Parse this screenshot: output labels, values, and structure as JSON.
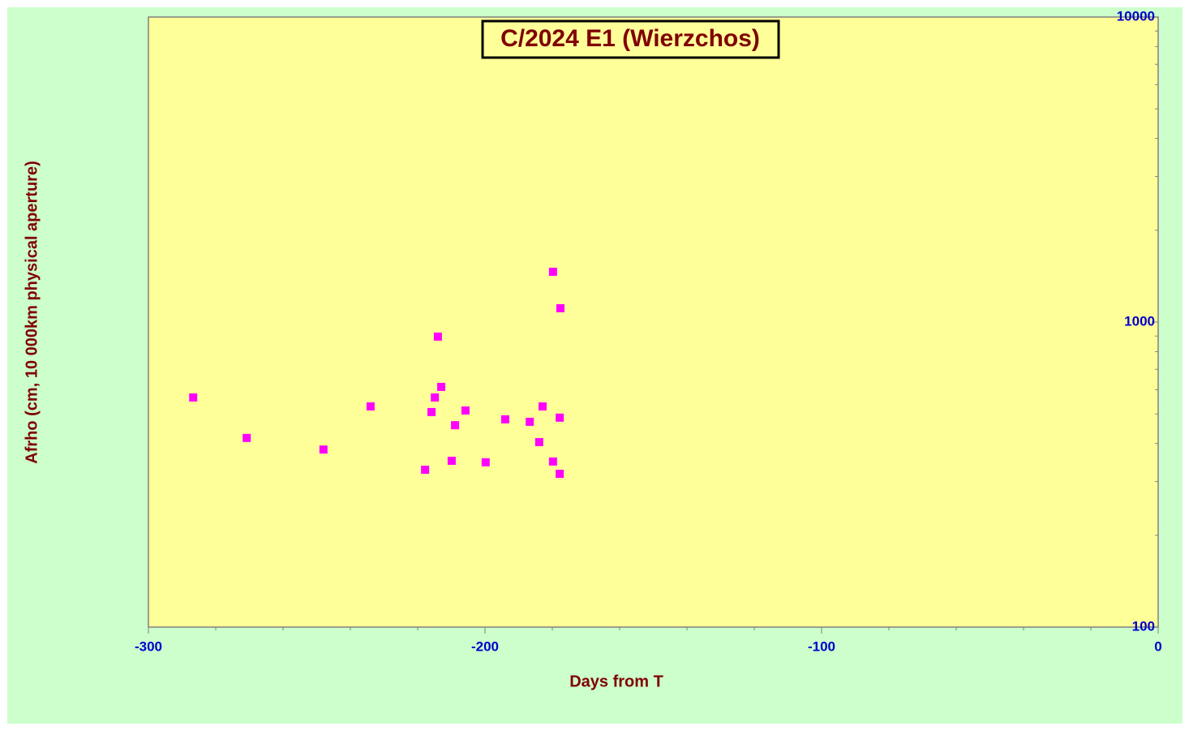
{
  "chart_data": {
    "type": "scatter",
    "title": "C/2024 E1 (Wierzchos)",
    "x_label": "Days from  T",
    "y_label": "Afrho (cm, 10 000km physical  aperture)",
    "xlim": [
      -300,
      0
    ],
    "xticks": [
      -300,
      -200,
      -100,
      0
    ],
    "xminorticks": [
      -280,
      -260,
      -240,
      -220,
      -180,
      -160,
      -140,
      -120,
      -80,
      -60,
      -40,
      -20
    ],
    "ylim": [
      100,
      10000
    ],
    "yticks": [
      100,
      1000,
      10000
    ],
    "log_y": true,
    "yminorticks": [
      200,
      300,
      400,
      500,
      600,
      700,
      800,
      900,
      2000,
      3000,
      4000,
      5000,
      6000,
      7000,
      8000,
      9000
    ],
    "series": [
      {
        "color": "#ff00ff",
        "x": [
          -286.7,
          -270.8,
          -248.0,
          -234.0,
          -217.8,
          -215.9,
          -214.9,
          -214.0,
          -213.0,
          -209.9,
          -208.9,
          -205.8,
          -199.8,
          -194.0,
          -186.7,
          -183.9,
          -182.9,
          -179.8,
          -179.8,
          -177.8,
          -177.8,
          -177.6
        ],
        "values": [
          566,
          417,
          382,
          529,
          328,
          507,
          566,
          896,
          613,
          351,
          459,
          513,
          347,
          480,
          471,
          404,
          529,
          1462,
          349,
          486,
          318,
          1110
        ]
      }
    ]
  }
}
